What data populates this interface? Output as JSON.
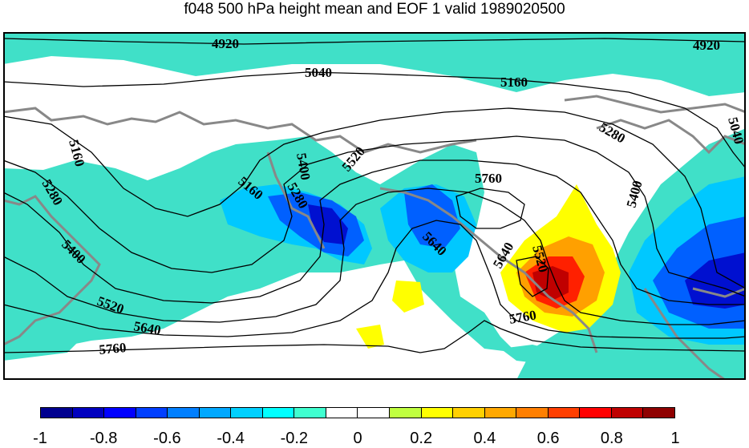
{
  "title": "f048 500 hPa height mean and EOF 1 valid 1989020500",
  "contour_labels": [
    "4920",
    "4920",
    "5040",
    "5160",
    "5280",
    "5040",
    "5160",
    "5280",
    "5400",
    "5160",
    "5400",
    "5280",
    "5520",
    "5760",
    "5640",
    "5400",
    "5640",
    "5520",
    "5520",
    "5640",
    "5760",
    "5760"
  ],
  "colorbar": {
    "colors": [
      "#00008f",
      "#0000bf",
      "#0000ff",
      "#003fff",
      "#007fff",
      "#00a8ff",
      "#00d0ff",
      "#00ffff",
      "#40ffd0",
      "#ffffff",
      "#ffffff",
      "#c0ff40",
      "#ffff00",
      "#ffd000",
      "#ffa800",
      "#ff7f00",
      "#ff3f00",
      "#ff0000",
      "#bf0000",
      "#8f0000"
    ],
    "ticks": [
      "-1",
      "-0.8",
      "-0.6",
      "-0.4",
      "-0.2",
      "0",
      "0.2",
      "0.4",
      "0.6",
      "0.8",
      "1"
    ]
  },
  "palette": {
    "teal": "#40e0c8",
    "cyan": "#00c8ff",
    "blue": "#0060ff",
    "darkblue": "#0010d0",
    "yellow": "#ffff00",
    "orange": "#ffa000",
    "red": "#ff2000",
    "darkred": "#c00000",
    "coast": "#888888"
  }
}
